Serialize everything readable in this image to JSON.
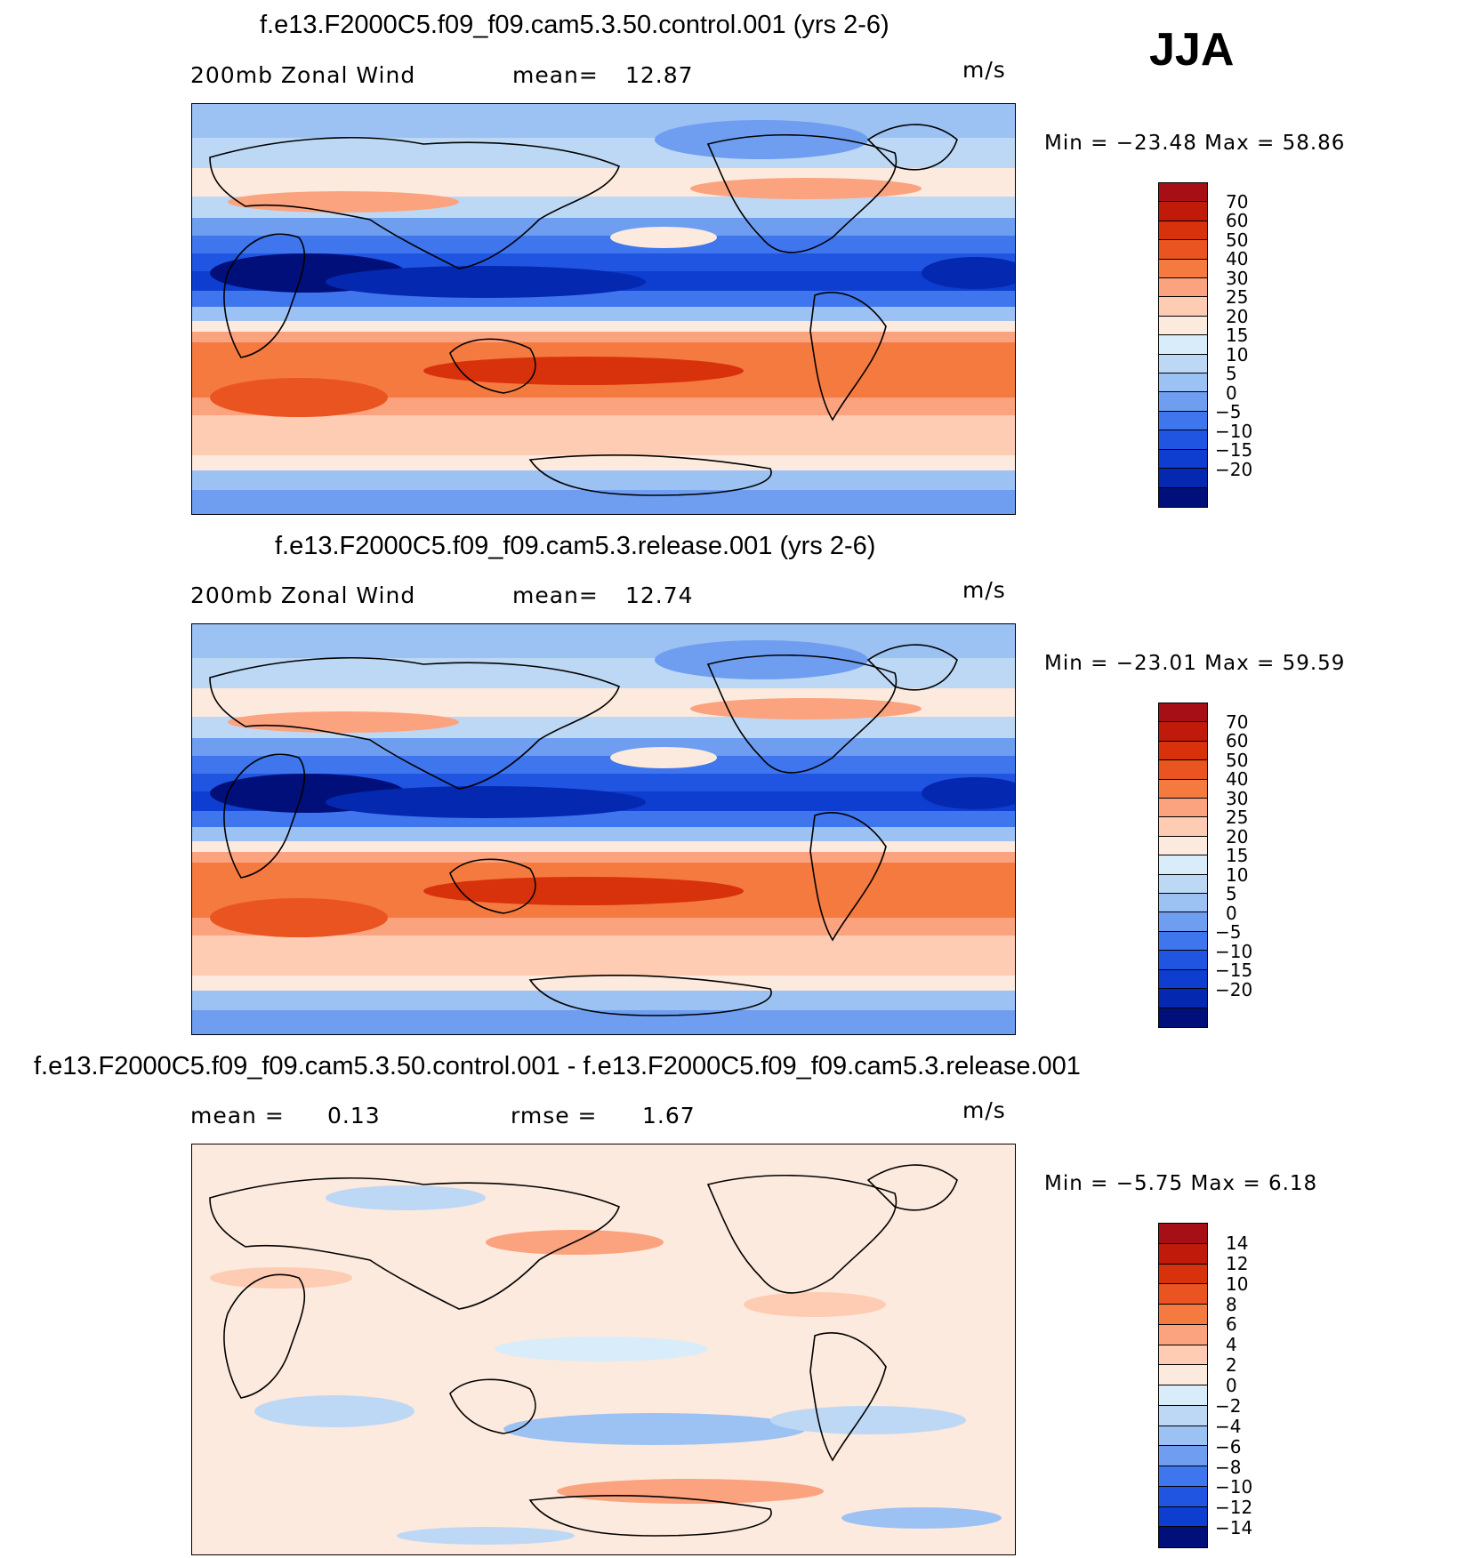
{
  "season": "JJA",
  "panels": [
    {
      "title": "f.e13.F2000C5.f09_f09.cam5.3.50.control.001 (yrs 2-6)",
      "left_label": "200mb Zonal Wind",
      "stat_label": "mean=",
      "stat_value": "12.87",
      "units": "m/s",
      "minmax": "Min = −23.48 Max =   58.86",
      "kind": "field",
      "colorbar": {
        "colors": [
          "#a50f15",
          "#c01a0b",
          "#d8320d",
          "#ea5420",
          "#f57a40",
          "#fba37e",
          "#fdccb3",
          "#fdeade",
          "#d9ecf9",
          "#bdd8f5",
          "#9cc1f3",
          "#6f9ef1",
          "#3f75ed",
          "#1f55e1",
          "#0d3ed0",
          "#0428af",
          "#010f7a"
        ],
        "labels": [
          "70",
          "60",
          "50",
          "40",
          "30",
          "25",
          "20",
          "15",
          "10",
          "5",
          "0",
          "−5",
          "−10",
          "−15",
          "−20"
        ]
      }
    },
    {
      "title": "f.e13.F2000C5.f09_f09.cam5.3.release.001 (yrs 2-6)",
      "left_label": "200mb Zonal Wind",
      "stat_label": "mean=",
      "stat_value": "12.74",
      "units": "m/s",
      "minmax": "Min = −23.01 Max =   59.59",
      "kind": "field",
      "colorbar": {
        "colors": [
          "#a50f15",
          "#c01a0b",
          "#d8320d",
          "#ea5420",
          "#f57a40",
          "#fba37e",
          "#fdccb3",
          "#fdeade",
          "#d9ecf9",
          "#bdd8f5",
          "#9cc1f3",
          "#6f9ef1",
          "#3f75ed",
          "#1f55e1",
          "#0d3ed0",
          "#0428af",
          "#010f7a"
        ],
        "labels": [
          "70",
          "60",
          "50",
          "40",
          "30",
          "25",
          "20",
          "15",
          "10",
          "5",
          "0",
          "−5",
          "−10",
          "−15",
          "−20"
        ]
      }
    },
    {
      "title": "f.e13.F2000C5.f09_f09.cam5.3.50.control.001 - f.e13.F2000C5.f09_f09.cam5.3.release.001",
      "left_label": "mean =",
      "left_value": "0.13",
      "stat_label": "rmse =",
      "stat_value": "1.67",
      "units": "m/s",
      "minmax": "Min =   −5.75 Max =    6.18",
      "kind": "diff",
      "colorbar": {
        "colors": [
          "#a50f15",
          "#c01a0b",
          "#d8320d",
          "#ea5420",
          "#f57a40",
          "#fba37e",
          "#fdccb3",
          "#fdeade",
          "#d9ecf9",
          "#bdd8f5",
          "#9cc1f3",
          "#6f9ef1",
          "#3f75ed",
          "#1f55e1",
          "#0d3ed0",
          "#010f7a"
        ],
        "labels": [
          "14",
          "12",
          "10",
          "8",
          "6",
          "4",
          "2",
          "0",
          "−2",
          "−4",
          "−6",
          "−8",
          "−10",
          "−12",
          "−14"
        ]
      }
    }
  ]
}
